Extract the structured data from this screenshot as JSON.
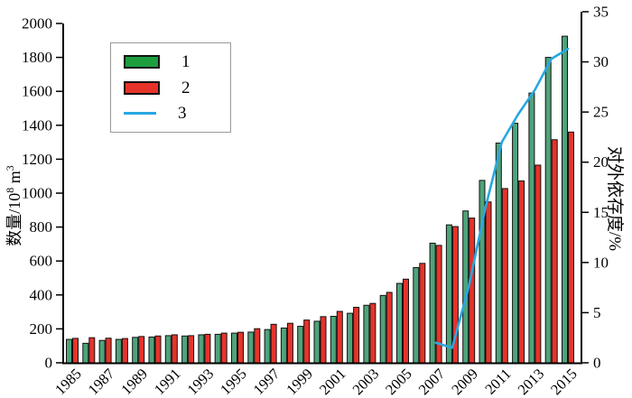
{
  "page": {
    "background": "#ffffff"
  },
  "legend": {
    "items": [
      {
        "label": "1",
        "type": "bar",
        "color": "#1C9E3F"
      },
      {
        "label": "2",
        "type": "bar",
        "color": "#E6332A"
      },
      {
        "label": "3",
        "type": "line",
        "color": "#29A7E1"
      }
    ]
  },
  "chart_data": {
    "type": "bar",
    "title": "",
    "grid": false,
    "legend_position": "upper-left",
    "categories": [
      1985,
      1986,
      1987,
      1988,
      1989,
      1990,
      1991,
      1992,
      1993,
      1994,
      1995,
      1996,
      1997,
      1998,
      1999,
      2000,
      2001,
      2002,
      2003,
      2004,
      2005,
      2006,
      2007,
      2008,
      2009,
      2010,
      2011,
      2012,
      2013,
      2014,
      2015
    ],
    "series": [
      {
        "name": "1",
        "kind": "bar",
        "axis": "left",
        "color": "#4FA37B",
        "values": [
          138,
          115,
          132,
          138,
          150,
          152,
          160,
          158,
          165,
          168,
          175,
          181,
          196,
          205,
          215,
          245,
          274,
          292,
          339,
          397,
          468,
          561,
          705,
          813,
          895,
          1075,
          1295,
          1412,
          1590,
          1800,
          1925
        ]
      },
      {
        "name": "2",
        "kind": "bar",
        "axis": "left",
        "color": "#E6332A",
        "values": [
          144,
          148,
          145,
          143,
          155,
          158,
          165,
          160,
          168,
          175,
          180,
          201,
          227,
          233,
          252,
          272,
          303,
          327,
          350,
          415,
          493,
          586,
          692,
          803,
          853,
          948,
          1027,
          1072,
          1165,
          1315,
          1360
        ]
      },
      {
        "name": "3",
        "kind": "line",
        "axis": "right",
        "color": "#29A7E1",
        "values": [
          null,
          null,
          null,
          null,
          null,
          null,
          null,
          null,
          null,
          null,
          null,
          null,
          null,
          null,
          null,
          null,
          null,
          null,
          null,
          null,
          null,
          null,
          2.0,
          1.5,
          7.6,
          15.4,
          22.0,
          24.8,
          27.2,
          30.3,
          31.3
        ]
      }
    ],
    "left_axis": {
      "label": "数量/10⁸m³",
      "label_parts": {
        "base": "数量/10",
        "sup": "8",
        "unit": " m",
        "unit_sup": "3"
      },
      "min": 0,
      "max": 2000,
      "tick_step": 200,
      "tick_labels": [
        "0",
        "200",
        "400",
        "600",
        "800",
        "1000",
        "1200",
        "1400",
        "1600",
        "1800",
        "2000"
      ]
    },
    "right_axis": {
      "label": "对外依存度/%",
      "min": 0,
      "max": 35,
      "tick_step": 5,
      "tick_labels": [
        "0",
        "5",
        "10",
        "15",
        "20",
        "25",
        "30",
        "35"
      ]
    },
    "x_axis": {
      "labeled_every": 2,
      "tick_labels": [
        "1985",
        "1987",
        "1989",
        "1991",
        "1993",
        "1995",
        "1997",
        "1999",
        "2001",
        "2003",
        "2005",
        "2007",
        "2009",
        "2011",
        "2013",
        "2015"
      ]
    }
  }
}
